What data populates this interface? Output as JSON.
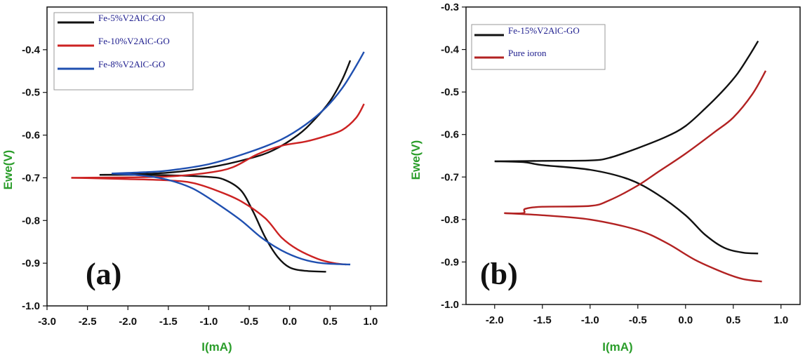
{
  "chart_data": [
    {
      "type": "line",
      "panel_label": "(a)",
      "xlabel": "I(mA)",
      "ylabel": "Ewe(V)",
      "xlim": [
        -3.0,
        1.2
      ],
      "ylim": [
        -1.0,
        -0.3
      ],
      "xticks": [
        "-3.0",
        "-2.5",
        "-2.0",
        "-1.5",
        "-1.0",
        "-0.5",
        "0.0",
        "0.5",
        "1.0"
      ],
      "xtick_values": [
        -3.0,
        -2.5,
        -2.0,
        -1.5,
        -1.0,
        -0.5,
        0.0,
        0.5,
        1.0
      ],
      "yticks": [
        "-0.4",
        "-0.5",
        "-0.6",
        "-0.7",
        "-0.8",
        "-0.9",
        "-1.0"
      ],
      "ytick_values": [
        -0.4,
        -0.5,
        -0.6,
        -0.7,
        -0.8,
        -0.9,
        -1.0
      ],
      "legend_position": "top-left",
      "series": [
        {
          "name": "Fe-5%V2AlC-GO",
          "color": "#111111",
          "upper": [
            [
              -2.35,
              -0.693
            ],
            [
              -2.0,
              -0.692
            ],
            [
              -1.5,
              -0.688
            ],
            [
              -1.0,
              -0.676
            ],
            [
              -0.5,
              -0.655
            ],
            [
              -0.2,
              -0.635
            ],
            [
              0.1,
              -0.6
            ],
            [
              0.3,
              -0.565
            ],
            [
              0.5,
              -0.52
            ],
            [
              0.65,
              -0.47
            ],
            [
              0.75,
              -0.425
            ]
          ],
          "lower": [
            [
              -2.35,
              -0.693
            ],
            [
              -2.0,
              -0.693
            ],
            [
              -1.5,
              -0.694
            ],
            [
              -1.0,
              -0.698
            ],
            [
              -0.8,
              -0.705
            ],
            [
              -0.6,
              -0.73
            ],
            [
              -0.45,
              -0.78
            ],
            [
              -0.3,
              -0.84
            ],
            [
              -0.15,
              -0.885
            ],
            [
              0.0,
              -0.91
            ],
            [
              0.2,
              -0.918
            ],
            [
              0.45,
              -0.92
            ]
          ]
        },
        {
          "name": "Fe-10%V2AlC-GO",
          "color": "#cc2222",
          "upper": [
            [
              -2.7,
              -0.7
            ],
            [
              -2.0,
              -0.699
            ],
            [
              -1.5,
              -0.697
            ],
            [
              -1.0,
              -0.688
            ],
            [
              -0.7,
              -0.675
            ],
            [
              -0.4,
              -0.645
            ],
            [
              -0.1,
              -0.625
            ],
            [
              0.2,
              -0.615
            ],
            [
              0.45,
              -0.602
            ],
            [
              0.65,
              -0.588
            ],
            [
              0.82,
              -0.56
            ],
            [
              0.92,
              -0.527
            ]
          ],
          "lower": [
            [
              -2.7,
              -0.7
            ],
            [
              -2.0,
              -0.703
            ],
            [
              -1.5,
              -0.706
            ],
            [
              -1.2,
              -0.712
            ],
            [
              -0.9,
              -0.73
            ],
            [
              -0.6,
              -0.755
            ],
            [
              -0.3,
              -0.795
            ],
            [
              -0.1,
              -0.84
            ],
            [
              0.1,
              -0.868
            ],
            [
              0.35,
              -0.89
            ],
            [
              0.55,
              -0.9
            ],
            [
              0.7,
              -0.903
            ]
          ]
        },
        {
          "name": "Fe-8%V2AlC-GO",
          "color": "#1f4fb0",
          "upper": [
            [
              -2.2,
              -0.69
            ],
            [
              -1.8,
              -0.687
            ],
            [
              -1.5,
              -0.683
            ],
            [
              -1.0,
              -0.668
            ],
            [
              -0.5,
              -0.64
            ],
            [
              -0.1,
              -0.61
            ],
            [
              0.2,
              -0.575
            ],
            [
              0.45,
              -0.535
            ],
            [
              0.65,
              -0.49
            ],
            [
              0.8,
              -0.445
            ],
            [
              0.92,
              -0.405
            ]
          ],
          "lower": [
            [
              -2.2,
              -0.69
            ],
            [
              -1.8,
              -0.695
            ],
            [
              -1.5,
              -0.705
            ],
            [
              -1.2,
              -0.725
            ],
            [
              -0.9,
              -0.76
            ],
            [
              -0.6,
              -0.8
            ],
            [
              -0.35,
              -0.84
            ],
            [
              -0.1,
              -0.87
            ],
            [
              0.15,
              -0.89
            ],
            [
              0.4,
              -0.9
            ],
            [
              0.75,
              -0.903
            ]
          ]
        }
      ]
    },
    {
      "type": "line",
      "panel_label": "(b)",
      "xlabel": "I(mA)",
      "ylabel": "Ewe(V)",
      "xlim": [
        -2.3,
        1.2
      ],
      "ylim": [
        -1.0,
        -0.3
      ],
      "xticks": [
        "-2.0",
        "-1.5",
        "-1.0",
        "-0.5",
        "0.0",
        "0.5",
        "1.0"
      ],
      "xtick_values": [
        -2.0,
        -1.5,
        -1.0,
        -0.5,
        0.0,
        0.5,
        1.0
      ],
      "yticks": [
        "-0.3",
        "-0.4",
        "-0.5",
        "-0.6",
        "-0.7",
        "-0.8",
        "-0.9",
        "-1.0"
      ],
      "ytick_values": [
        -0.3,
        -0.4,
        -0.5,
        -0.6,
        -0.7,
        -0.8,
        -0.9,
        -1.0
      ],
      "legend_position": "top-left",
      "series": [
        {
          "name": "Fe-15%V2AlC-GO",
          "color": "#111111",
          "upper": [
            [
              -2.0,
              -0.663
            ],
            [
              -1.5,
              -0.662
            ],
            [
              -1.0,
              -0.661
            ],
            [
              -0.8,
              -0.655
            ],
            [
              -0.5,
              -0.632
            ],
            [
              -0.2,
              -0.605
            ],
            [
              0.0,
              -0.58
            ],
            [
              0.2,
              -0.54
            ],
            [
              0.4,
              -0.495
            ],
            [
              0.55,
              -0.455
            ],
            [
              0.68,
              -0.41
            ],
            [
              0.76,
              -0.38
            ]
          ],
          "lower": [
            [
              -2.0,
              -0.663
            ],
            [
              -1.7,
              -0.665
            ],
            [
              -1.5,
              -0.672
            ],
            [
              -1.0,
              -0.683
            ],
            [
              -0.6,
              -0.705
            ],
            [
              -0.3,
              -0.74
            ],
            [
              0.0,
              -0.79
            ],
            [
              0.2,
              -0.835
            ],
            [
              0.4,
              -0.866
            ],
            [
              0.6,
              -0.878
            ],
            [
              0.76,
              -0.88
            ]
          ]
        },
        {
          "name": "Pure ioron",
          "color": "#b22222",
          "upper": [
            [
              -1.9,
              -0.785
            ],
            [
              -1.7,
              -0.785
            ],
            [
              -1.68,
              -0.775
            ],
            [
              -1.5,
              -0.77
            ],
            [
              -1.0,
              -0.768
            ],
            [
              -0.8,
              -0.755
            ],
            [
              -0.5,
              -0.72
            ],
            [
              -0.3,
              -0.69
            ],
            [
              0.0,
              -0.645
            ],
            [
              0.3,
              -0.595
            ],
            [
              0.5,
              -0.56
            ],
            [
              0.7,
              -0.505
            ],
            [
              0.84,
              -0.45
            ]
          ],
          "lower": [
            [
              -1.9,
              -0.785
            ],
            [
              -1.5,
              -0.79
            ],
            [
              -1.0,
              -0.8
            ],
            [
              -0.5,
              -0.825
            ],
            [
              -0.2,
              -0.855
            ],
            [
              0.1,
              -0.895
            ],
            [
              0.4,
              -0.925
            ],
            [
              0.6,
              -0.94
            ],
            [
              0.8,
              -0.946
            ]
          ]
        }
      ]
    }
  ]
}
